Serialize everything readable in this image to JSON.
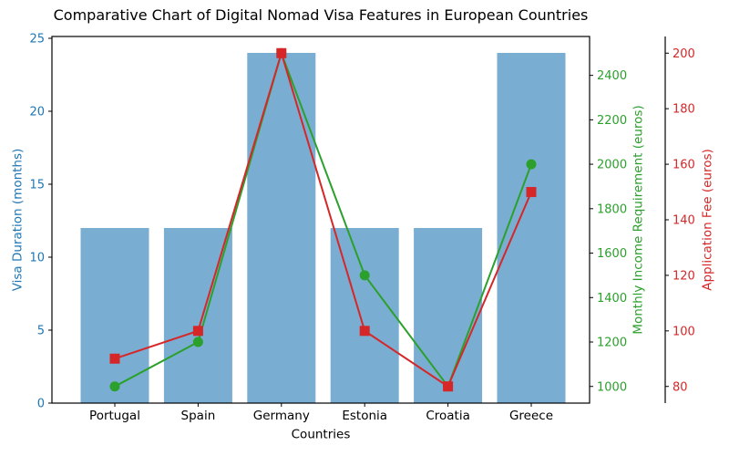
{
  "chart_data": {
    "type": "combo",
    "title": "Comparative Chart of Digital Nomad Visa Features in European Countries",
    "xlabel": "Countries",
    "categories": [
      "Portugal",
      "Spain",
      "Germany",
      "Estonia",
      "Croatia",
      "Greece"
    ],
    "series": [
      {
        "name": "Visa Duration (months)",
        "type": "bar",
        "axis": "left",
        "color": "#79add2",
        "values": [
          12,
          12,
          24,
          12,
          12,
          24
        ]
      },
      {
        "name": "Monthly Income Requirement (euros)",
        "type": "line",
        "marker": "circle",
        "axis": "income",
        "color": "#2ca02c",
        "values": [
          1000,
          1200,
          2500,
          1500,
          1000,
          2000
        ]
      },
      {
        "name": "Application Fee (euros)",
        "type": "line",
        "marker": "square",
        "axis": "fee",
        "color": "#d62728",
        "values": [
          90,
          100,
          200,
          100,
          80,
          150
        ]
      }
    ],
    "axes": {
      "left": {
        "label": "Visa Duration (months)",
        "color": "#1f77b4",
        "ticks": [
          0,
          5,
          10,
          15,
          20,
          25
        ],
        "range": [
          0,
          25.125
        ]
      },
      "income": {
        "label": "Monthly Income Requirement (euros)",
        "color": "#2ca02c",
        "ticks": [
          1000,
          1200,
          1400,
          1600,
          1800,
          2000,
          2200,
          2400
        ],
        "range": [
          925,
          2575
        ]
      },
      "fee": {
        "label": "Application Fee (euros)",
        "color": "#d62728",
        "ticks": [
          80,
          100,
          120,
          140,
          160,
          180,
          200
        ],
        "range": [
          74,
          206
        ]
      }
    },
    "legend": "none",
    "grid": false,
    "text_color": "#000000",
    "spine_color": "#000000"
  }
}
